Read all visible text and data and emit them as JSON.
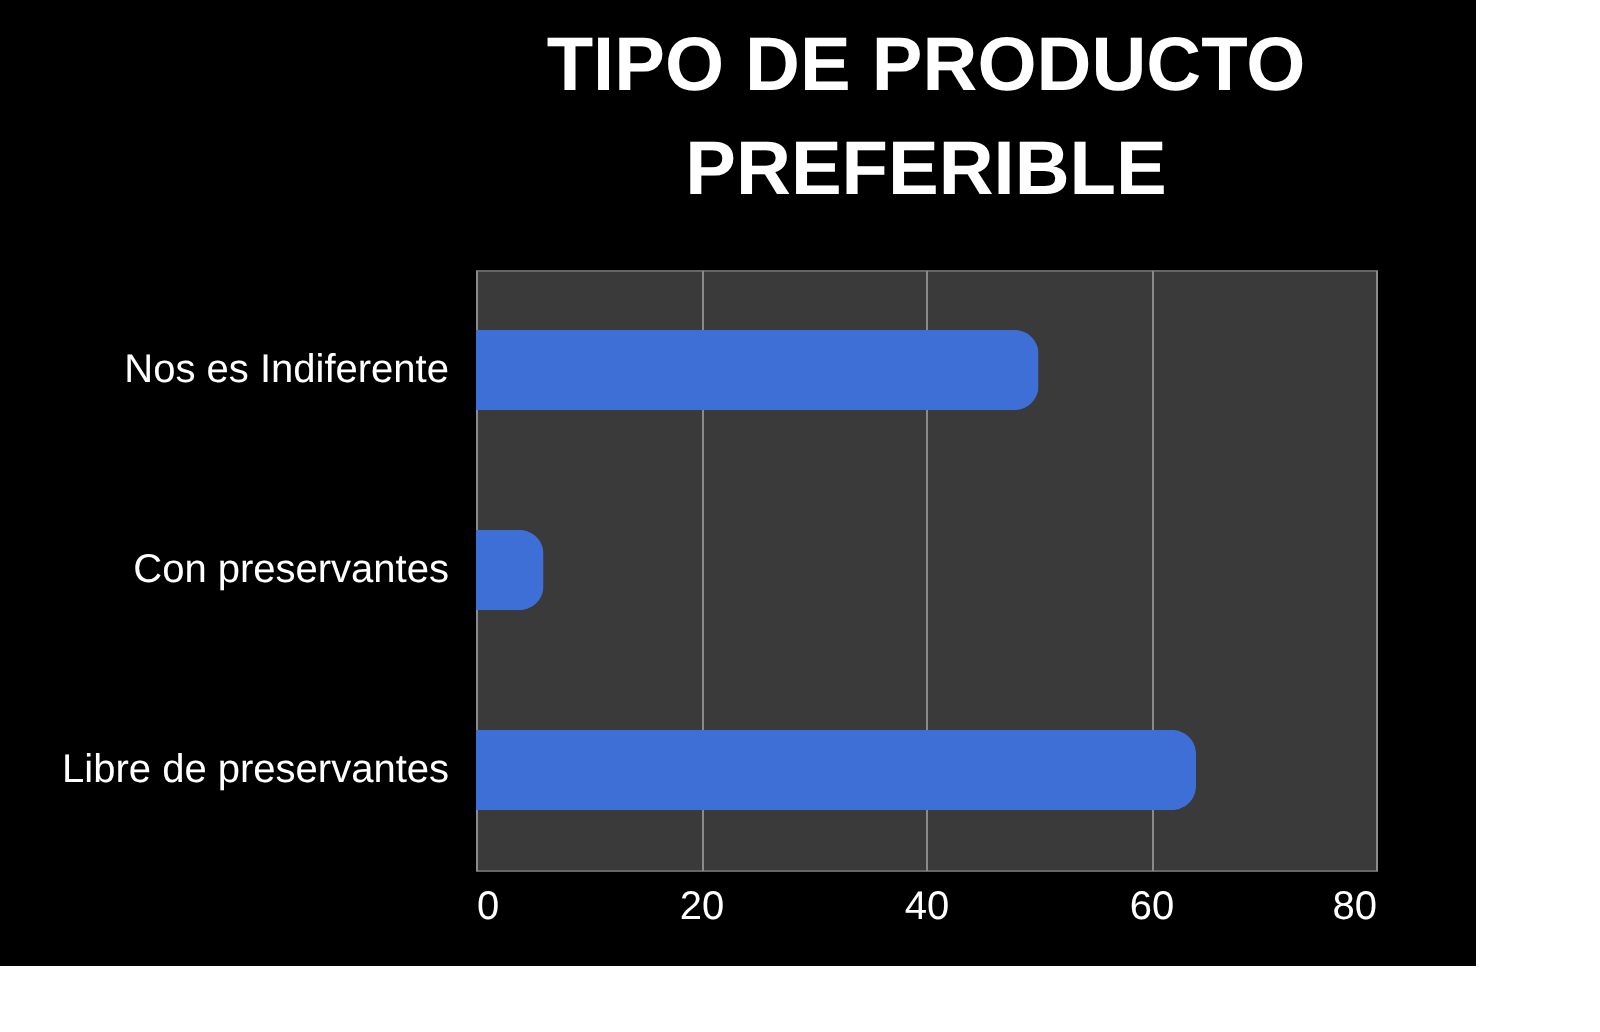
{
  "chart_data": {
    "type": "bar",
    "title": "TIPO DE PRODUCTO PREFERIBLE",
    "orientation": "horizontal",
    "categories": [
      "Nos es Indiferente",
      "Con preservantes",
      "Libre de preservantes"
    ],
    "values": [
      50,
      6,
      64
    ],
    "color": "#3d6fd6",
    "xlim": [
      0,
      80
    ],
    "xticks": [
      0,
      20,
      40,
      60,
      80
    ],
    "grid": "x"
  }
}
